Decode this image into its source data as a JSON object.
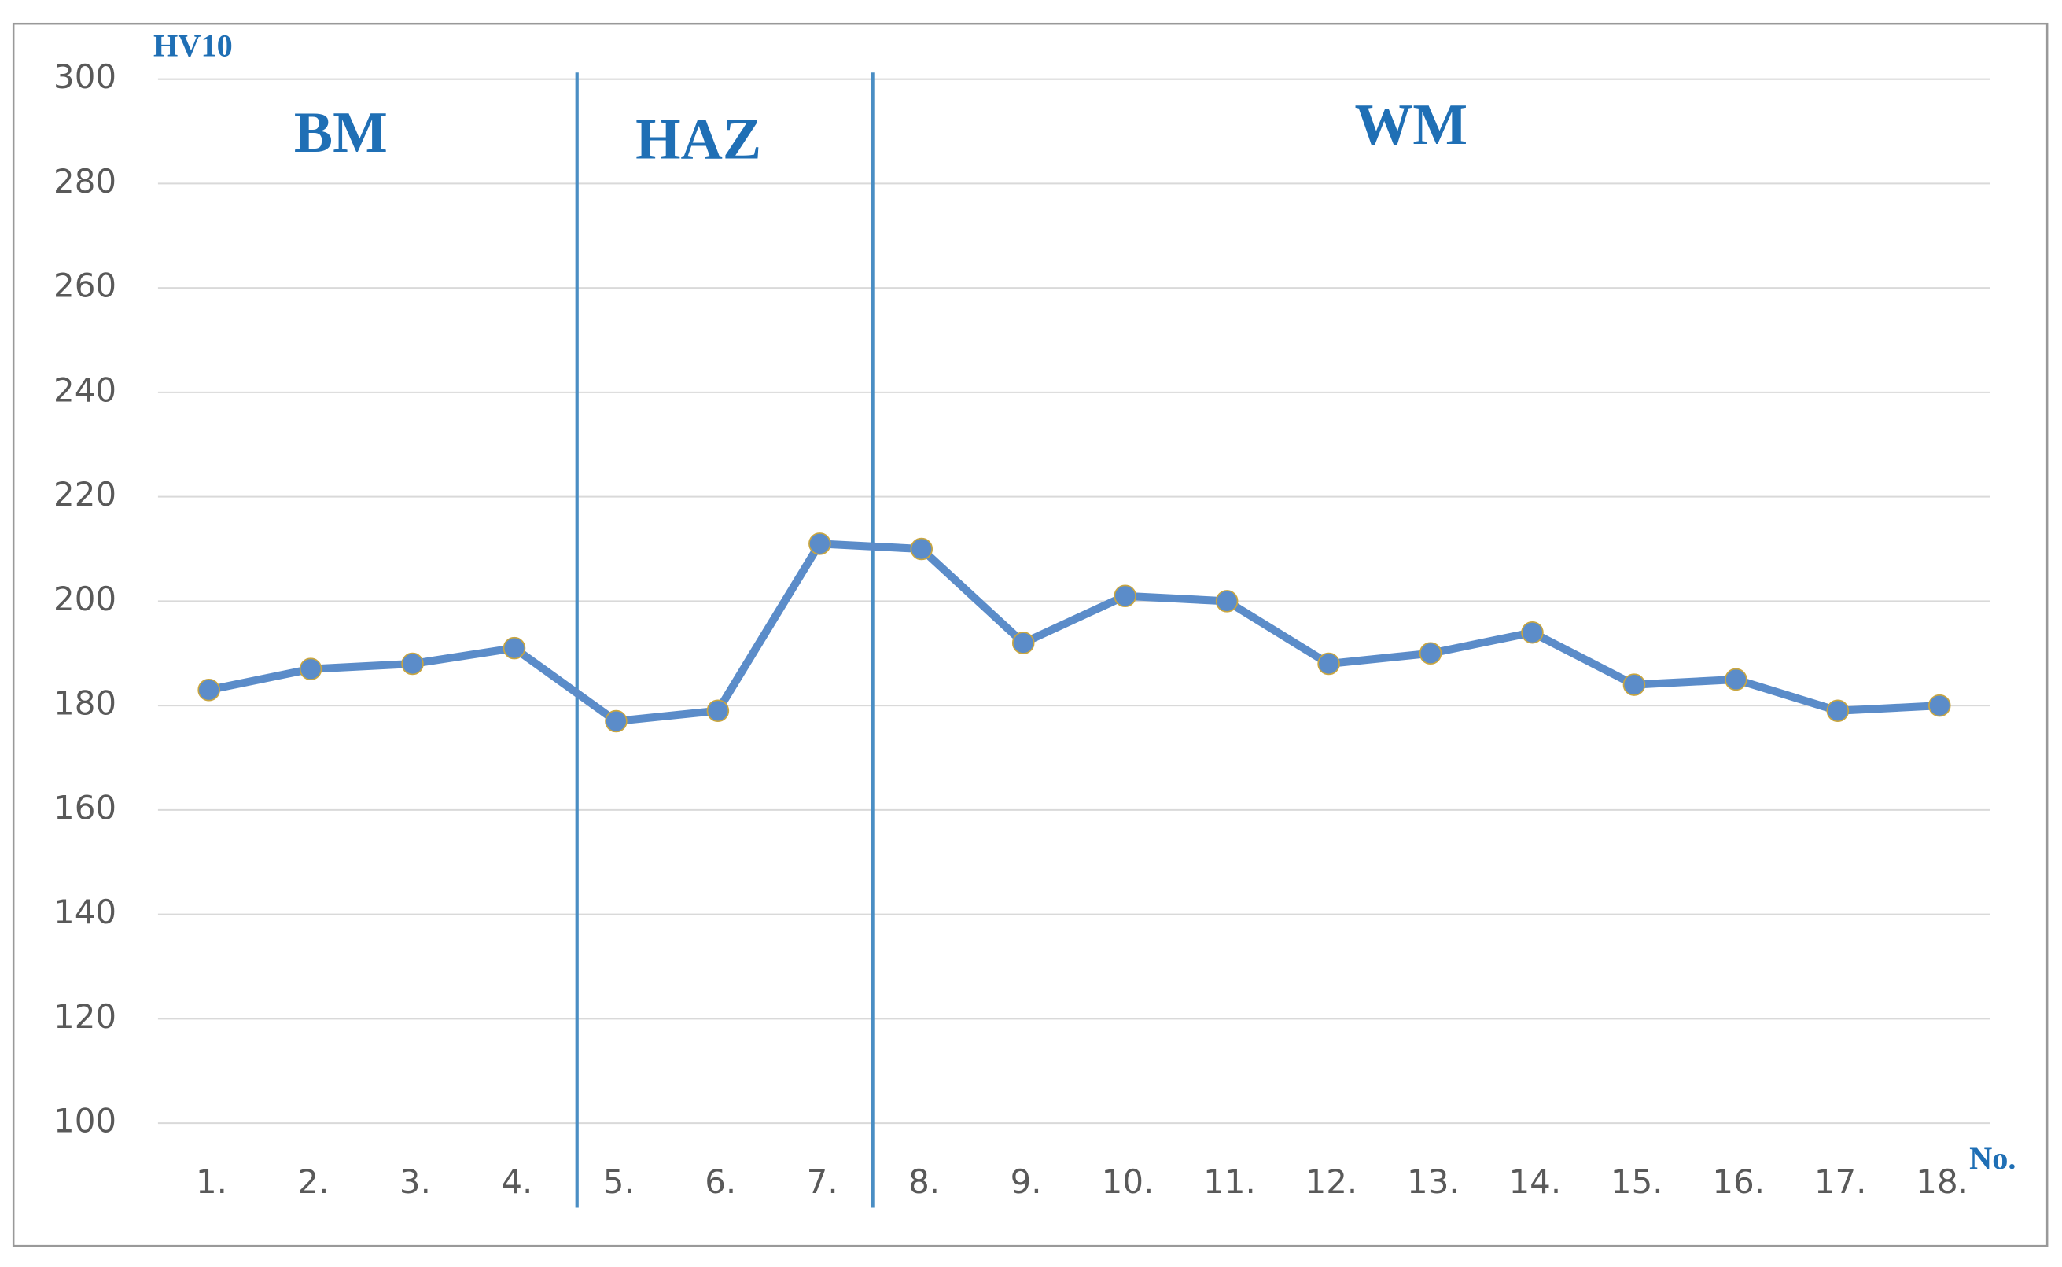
{
  "chart_data": {
    "type": "line",
    "y_label": "HV10",
    "x_label": "No.",
    "regions": [
      "BM",
      "HAZ",
      "WM"
    ],
    "categories": [
      "1.",
      "2.",
      "3.",
      "4.",
      "5.",
      "6.",
      "7.",
      "8.",
      "9.",
      "10.",
      "11.",
      "12.",
      "13.",
      "14.",
      "15.",
      "16.",
      "17.",
      "18."
    ],
    "values": [
      183,
      187,
      188,
      191,
      177,
      179,
      211,
      210,
      192,
      201,
      200,
      188,
      190,
      194,
      184,
      185,
      179,
      180
    ],
    "color": "#5b8cc9",
    "ylim": [
      100,
      300
    ],
    "yticks": [
      100,
      120,
      140,
      160,
      180,
      200,
      220,
      240,
      260,
      280,
      300
    ],
    "grid": true
  }
}
